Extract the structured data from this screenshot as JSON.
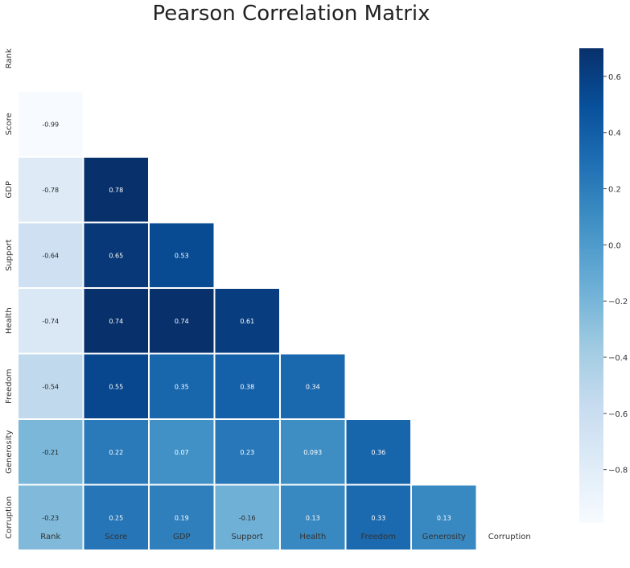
{
  "chart_data": {
    "type": "heatmap",
    "title": "Pearson Correlation Matrix",
    "rows": [
      "Rank",
      "Score",
      "GDP",
      "Support",
      "Health",
      "Freedom",
      "Generosity",
      "Corruption"
    ],
    "columns": [
      "Rank",
      "Score",
      "GDP",
      "Support",
      "Health",
      "Freedom",
      "Generosity",
      "Corruption"
    ],
    "mask": "upper-triangle-including-diagonal",
    "cells": [
      {
        "row": "Score",
        "col": "Rank",
        "value": -0.99,
        "label": "-0.99"
      },
      {
        "row": "GDP",
        "col": "Rank",
        "value": -0.78,
        "label": "-0.78"
      },
      {
        "row": "GDP",
        "col": "Score",
        "value": 0.78,
        "label": "0.78"
      },
      {
        "row": "Support",
        "col": "Rank",
        "value": -0.64,
        "label": "-0.64"
      },
      {
        "row": "Support",
        "col": "Score",
        "value": 0.65,
        "label": "0.65"
      },
      {
        "row": "Support",
        "col": "GDP",
        "value": 0.53,
        "label": "0.53"
      },
      {
        "row": "Health",
        "col": "Rank",
        "value": -0.74,
        "label": "-0.74"
      },
      {
        "row": "Health",
        "col": "Score",
        "value": 0.74,
        "label": "0.74"
      },
      {
        "row": "Health",
        "col": "GDP",
        "value": 0.74,
        "label": "0.74"
      },
      {
        "row": "Health",
        "col": "Support",
        "value": 0.61,
        "label": "0.61"
      },
      {
        "row": "Freedom",
        "col": "Rank",
        "value": -0.54,
        "label": "-0.54"
      },
      {
        "row": "Freedom",
        "col": "Score",
        "value": 0.55,
        "label": "0.55"
      },
      {
        "row": "Freedom",
        "col": "GDP",
        "value": 0.35,
        "label": "0.35"
      },
      {
        "row": "Freedom",
        "col": "Support",
        "value": 0.38,
        "label": "0.38"
      },
      {
        "row": "Freedom",
        "col": "Health",
        "value": 0.34,
        "label": "0.34"
      },
      {
        "row": "Generosity",
        "col": "Rank",
        "value": -0.21,
        "label": "-0.21"
      },
      {
        "row": "Generosity",
        "col": "Score",
        "value": 0.22,
        "label": "0.22"
      },
      {
        "row": "Generosity",
        "col": "GDP",
        "value": 0.07,
        "label": "0.07"
      },
      {
        "row": "Generosity",
        "col": "Support",
        "value": 0.23,
        "label": "0.23"
      },
      {
        "row": "Generosity",
        "col": "Health",
        "value": 0.093,
        "label": "0.093"
      },
      {
        "row": "Generosity",
        "col": "Freedom",
        "value": 0.36,
        "label": "0.36"
      },
      {
        "row": "Corruption",
        "col": "Rank",
        "value": -0.23,
        "label": "-0.23"
      },
      {
        "row": "Corruption",
        "col": "Score",
        "value": 0.25,
        "label": "0.25"
      },
      {
        "row": "Corruption",
        "col": "GDP",
        "value": 0.19,
        "label": "0.19"
      },
      {
        "row": "Corruption",
        "col": "Support",
        "value": -0.16,
        "label": "-0.16"
      },
      {
        "row": "Corruption",
        "col": "Health",
        "value": 0.13,
        "label": "0.13"
      },
      {
        "row": "Corruption",
        "col": "Freedom",
        "value": 0.33,
        "label": "0.33"
      },
      {
        "row": "Corruption",
        "col": "Generosity",
        "value": 0.13,
        "label": "0.13"
      }
    ],
    "colorbar": {
      "colormap": "Blues",
      "vmin": -0.99,
      "vmax": 0.7,
      "ticks": [
        -0.8,
        -0.6,
        -0.4,
        -0.2,
        0.0,
        0.2,
        0.4,
        0.6
      ],
      "tick_labels": [
        "−0.8",
        "−0.6",
        "−0.4",
        "−0.2",
        "0.0",
        "0.2",
        "0.4",
        "0.6"
      ]
    },
    "grid": false,
    "legend": "colorbar-right"
  }
}
